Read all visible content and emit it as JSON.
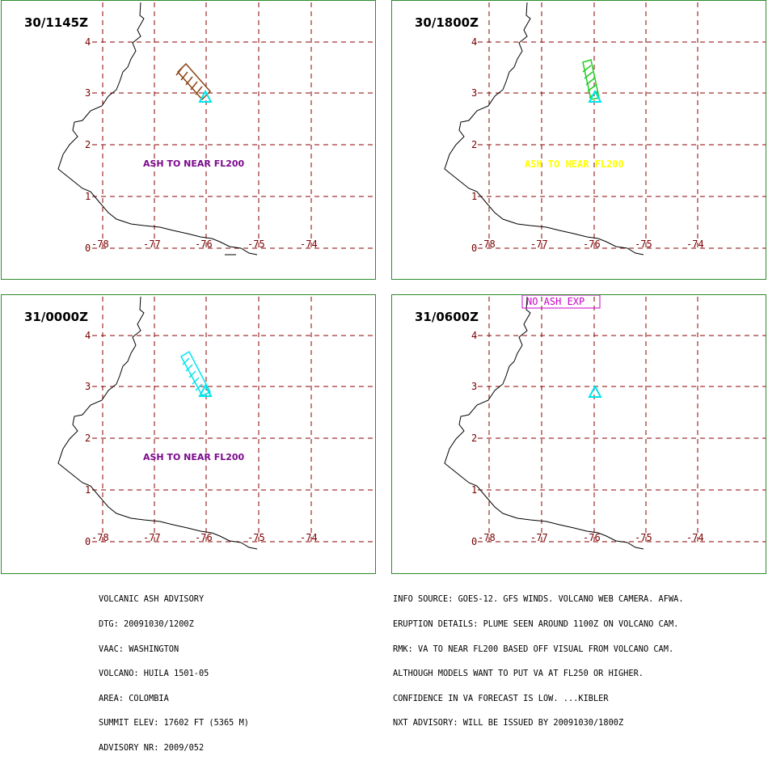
{
  "panels": [
    {
      "time": "30/1145Z",
      "ash_text": "ASH TO NEAR FL200",
      "ash_color": "#7b0a8c",
      "plume_color": "#8b4513"
    },
    {
      "time": "30/1800Z",
      "ash_text": "ASH TO NEAR FL200",
      "ash_color": "#ffff00",
      "plume_color": "#22cc22"
    },
    {
      "time": "31/0000Z",
      "ash_text": "ASH TO NEAR FL200",
      "ash_color": "#7b0a8c",
      "plume_color": "#00e5ee"
    },
    {
      "time": "31/0600Z",
      "ash_text": "",
      "ash_color": "#cc00cc",
      "plume_color": ""
    }
  ],
  "no_ash_label": "NO ASH EXP",
  "axes": {
    "lon_ticks": [
      "-78",
      "-77",
      "-76",
      "-75",
      "-74"
    ],
    "lat_ticks": [
      "0",
      "1",
      "2",
      "3",
      "4"
    ],
    "grid_color": "#8b0000"
  },
  "colors": {
    "volcano_marker": "#00e5ee",
    "panel_border": "#2e8b2e",
    "coastline": "#000000"
  },
  "advisory_left": [
    "VOLCANIC ASH ADVISORY",
    "DTG: 20091030/1200Z",
    "VAAC: WASHINGTON",
    "VOLCANO: HUILA 1501-05",
    "AREA: COLOMBIA",
    "SUMMIT ELEV: 17602 FT (5365 M)",
    "ADVISORY NR: 2009/052"
  ],
  "advisory_right": [
    "INFO SOURCE: GOES-12. GFS WINDS. VOLCANO WEB CAMERA. AFWA.",
    "ERUPTION DETAILS: PLUME SEEN AROUND 1100Z ON VOLCANO CAM.",
    "RMK: VA TO NEAR FL200 BASED OFF VISUAL FROM VOLCANO CAM.",
    "ALTHOUGH MODELS WANT TO PUT VA AT FL250 OR HIGHER.",
    "CONFIDENCE IN VA FORECAST IS LOW. ...KIBLER",
    "NXT ADVISORY: WILL BE ISSUED BY 20091030/1800Z"
  ]
}
